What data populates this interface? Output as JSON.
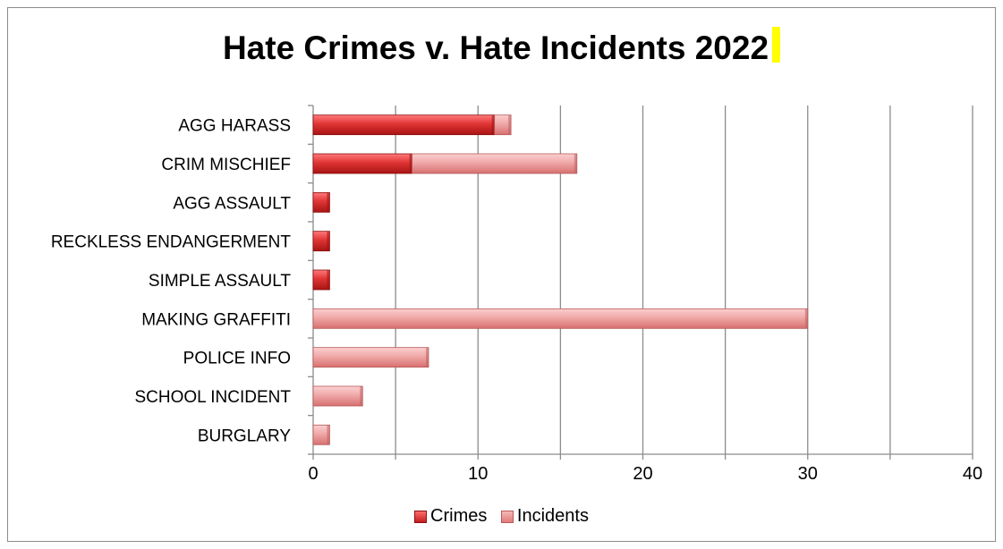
{
  "chart_data": {
    "type": "bar",
    "orientation": "horizontal",
    "stacked": true,
    "title": "Hate Crimes v. Hate Incidents 2022",
    "categories": [
      "AGG HARASS",
      "CRIM MISCHIEF",
      "AGG ASSAULT",
      "RECKLESS ENDANGERMENT",
      "SIMPLE ASSAULT",
      "MAKING GRAFFITI",
      "POLICE INFO",
      "SCHOOL INCIDENT",
      "BURGLARY"
    ],
    "series": [
      {
        "name": "Crimes",
        "values": [
          11,
          6,
          1,
          1,
          1,
          0,
          0,
          0,
          0
        ],
        "color": "#d42a2a"
      },
      {
        "name": "Incidents",
        "values": [
          1,
          10,
          0,
          0,
          0,
          30,
          7,
          3,
          1
        ],
        "color": "#eb9a9a"
      }
    ],
    "xlim": [
      0,
      40
    ],
    "x_ticks": [
      "0",
      "10",
      "20",
      "30",
      "40"
    ],
    "grid": true,
    "legend_position": "bottom",
    "highlight_color": "#ffff00"
  }
}
